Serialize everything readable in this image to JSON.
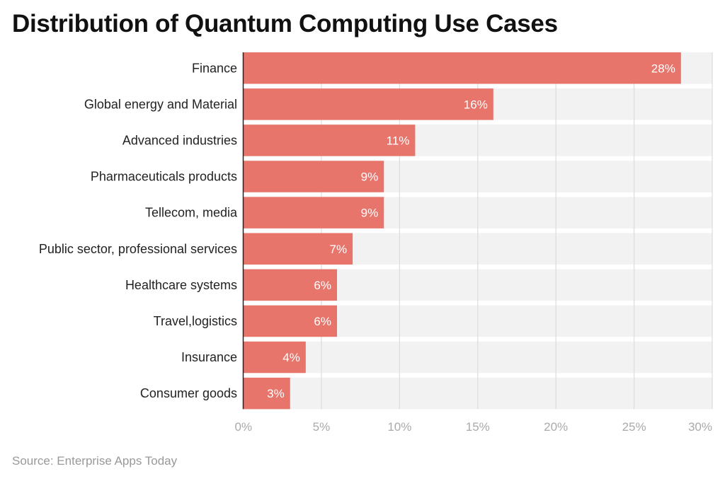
{
  "chart_data": {
    "type": "bar",
    "orientation": "horizontal",
    "title": "Distribution of Quantum Computing Use Cases",
    "categories": [
      "Finance",
      "Global energy and Material",
      "Advanced industries",
      "Pharmaceuticals products",
      "Tellecom, media",
      "Public sector, professional services",
      "Healthcare systems",
      "Travel,logistics",
      "Insurance",
      "Consumer goods"
    ],
    "values": [
      28,
      16,
      11,
      9,
      9,
      7,
      6,
      6,
      4,
      3
    ],
    "data_labels": [
      "28%",
      "16%",
      "11%",
      "9%",
      "9%",
      "7%",
      "6%",
      "6%",
      "4%",
      "3%"
    ],
    "xlim": [
      0,
      30
    ],
    "x_ticks": [
      "0%",
      "5%",
      "10%",
      "15%",
      "20%",
      "25%",
      "30%"
    ],
    "grid": true,
    "bar_color": "#e8756b",
    "band_color": "#f2f2f2",
    "source": "Source: Enterprise Apps Today"
  }
}
